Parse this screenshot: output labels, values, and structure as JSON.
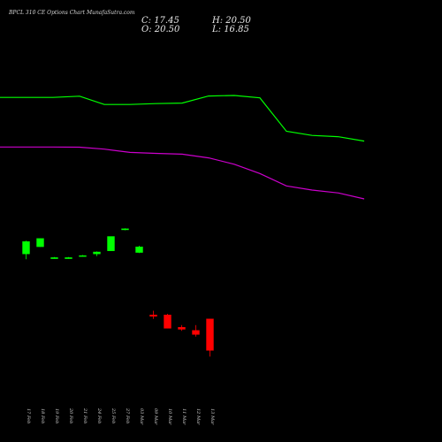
{
  "chart_data": {
    "type": "candlestick",
    "title": "BPCL 310 CE Options Chart MunafaSutra.com",
    "ohlc_readout": {
      "close": "C: 17.45",
      "high": "H: 20.50",
      "open": "O: 20.50",
      "low": "L: 16.85"
    },
    "colors": {
      "background": "#000000",
      "up": "#00ff00",
      "down": "#ff0000",
      "upper_line": "#00ff00",
      "lower_line": "#cc00cc",
      "text": "#ffffff"
    },
    "price_range": [
      12,
      48
    ],
    "candles": [
      {
        "date": "17 Feb",
        "open": 26.8,
        "high": 28.1,
        "low": 26.3,
        "close": 28.0
      },
      {
        "date": "18 Feb",
        "open": 27.5,
        "high": 28.3,
        "low": 27.5,
        "close": 28.3
      },
      {
        "date": "19 Feb",
        "open": 26.4,
        "high": 26.5,
        "low": 26.35,
        "close": 26.45
      },
      {
        "date": "20 Feb",
        "open": 26.4,
        "high": 26.5,
        "low": 26.35,
        "close": 26.45
      },
      {
        "date": "21 Feb",
        "open": 26.6,
        "high": 26.7,
        "low": 26.55,
        "close": 26.65
      },
      {
        "date": "24 Feb",
        "open": 26.8,
        "high": 27.05,
        "low": 26.6,
        "close": 27.0
      },
      {
        "date": "25 Feb",
        "open": 27.1,
        "high": 28.5,
        "low": 27.1,
        "close": 28.5
      },
      {
        "date": "27 Feb",
        "open": 29.2,
        "high": 29.3,
        "low": 29.1,
        "close": 29.25
      },
      {
        "date": "03 Mar",
        "open": 26.95,
        "high": 27.6,
        "low": 26.9,
        "close": 27.5
      },
      {
        "date": "09 Mar",
        "open": 20.9,
        "high": 21.3,
        "low": 20.5,
        "close": 20.75
      },
      {
        "date": "10 Mar",
        "open": 20.9,
        "high": 21.0,
        "low": 19.6,
        "close": 19.6
      },
      {
        "date": "11 Mar",
        "open": 19.7,
        "high": 19.9,
        "low": 19.35,
        "close": 19.5
      },
      {
        "date": "12 Mar",
        "open": 19.4,
        "high": 19.9,
        "low": 18.8,
        "close": 19.0
      },
      {
        "date": "13 Mar",
        "open": 20.5,
        "high": 20.5,
        "low": 16.85,
        "close": 17.45
      }
    ],
    "upper_band": [
      [
        0,
        41.98
      ],
      [
        1,
        41.98
      ],
      [
        2,
        42.1
      ],
      [
        3,
        41.3
      ],
      [
        4,
        41.3
      ],
      [
        5,
        41.38
      ],
      [
        6,
        41.43
      ],
      [
        7,
        42.12
      ],
      [
        8,
        42.17
      ],
      [
        9,
        41.94
      ],
      [
        10,
        38.7
      ],
      [
        11,
        38.3
      ],
      [
        12,
        38.17
      ],
      [
        13,
        37.75
      ]
    ],
    "lower_band": [
      [
        0,
        37.17
      ],
      [
        1,
        37.17
      ],
      [
        2,
        37.16
      ],
      [
        3,
        36.97
      ],
      [
        4,
        36.65
      ],
      [
        5,
        36.56
      ],
      [
        6,
        36.48
      ],
      [
        7,
        36.12
      ],
      [
        8,
        35.5
      ],
      [
        9,
        34.6
      ],
      [
        10,
        33.4
      ],
      [
        11,
        33.0
      ],
      [
        12,
        32.72
      ],
      [
        13,
        32.14
      ]
    ]
  }
}
